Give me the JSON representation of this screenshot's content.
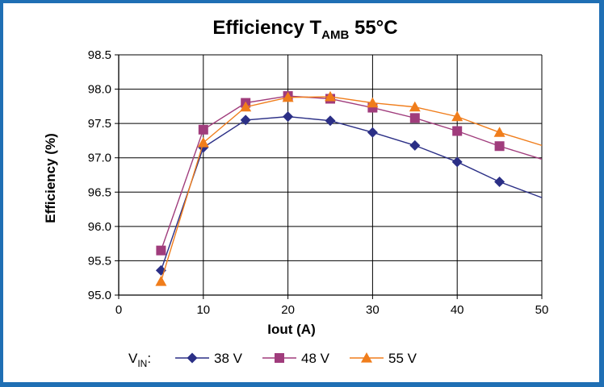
{
  "chart_data": {
    "type": "line",
    "title": "Efficiency T",
    "title_subscript": "AMB",
    "title_suffix": " 55°C",
    "xlabel": "Iout (A)",
    "ylabel": "Efficiency (%)",
    "xlim": [
      0,
      50
    ],
    "ylim": [
      95.0,
      98.5
    ],
    "x_ticks": [
      "0",
      "10",
      "20",
      "30",
      "40",
      "50"
    ],
    "y_ticks": [
      "95.0",
      "95.5",
      "96.0",
      "96.5",
      "97.0",
      "97.5",
      "98.0",
      "98.5"
    ],
    "grid": true,
    "legend_position": "bottom",
    "legend_prefix": "V",
    "legend_prefix_subscript": "IN",
    "legend_prefix_suffix": ":",
    "series": [
      {
        "name": "38 V",
        "color": "#2b2f86",
        "marker": "diamond",
        "x": [
          5,
          10,
          15,
          20,
          25,
          30,
          35,
          40,
          45
        ],
        "y": [
          95.36,
          97.15,
          97.55,
          97.6,
          97.54,
          97.37,
          97.18,
          96.94,
          96.65
        ],
        "trend_end": [
          50,
          96.42
        ]
      },
      {
        "name": "48 V",
        "color": "#a03c7c",
        "marker": "square",
        "x": [
          5,
          10,
          15,
          20,
          25,
          30,
          35,
          40,
          45
        ],
        "y": [
          95.65,
          97.41,
          97.8,
          97.9,
          97.86,
          97.73,
          97.58,
          97.39,
          97.17
        ],
        "trend_end": [
          50,
          96.98
        ]
      },
      {
        "name": "55 V",
        "color": "#f07d1b",
        "marker": "triangle",
        "x": [
          5,
          10,
          15,
          20,
          25,
          30,
          35,
          40,
          45
        ],
        "y": [
          95.2,
          97.22,
          97.74,
          97.88,
          97.89,
          97.8,
          97.74,
          97.6,
          97.37
        ],
        "trend_end": [
          50,
          97.18
        ]
      }
    ]
  }
}
